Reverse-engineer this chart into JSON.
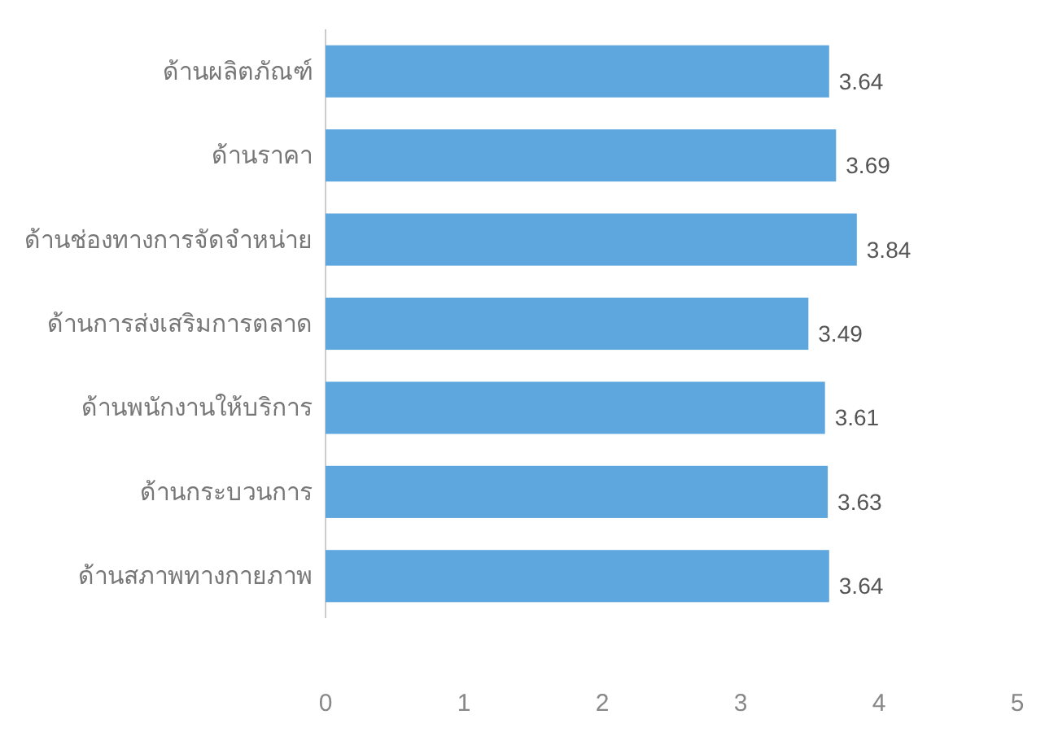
{
  "chart_data": {
    "type": "bar",
    "orientation": "horizontal",
    "categories": [
      "ด้านผลิตภัณฑ์",
      "ด้านราคา",
      "ด้านช่องทางการจัดจำหน่าย",
      "ด้านการส่งเสริมการตลาด",
      "ด้านพนักงานให้บริการ",
      "ด้านกระบวนการ",
      "ด้านสภาพทางกายภาพ"
    ],
    "values": [
      3.64,
      3.69,
      3.84,
      3.49,
      3.61,
      3.63,
      3.64
    ],
    "color": "#5ea7de",
    "xlim": [
      0,
      5
    ],
    "xticks": [
      0,
      1,
      2,
      3,
      4,
      5
    ],
    "grid": false,
    "data_labels": true
  }
}
